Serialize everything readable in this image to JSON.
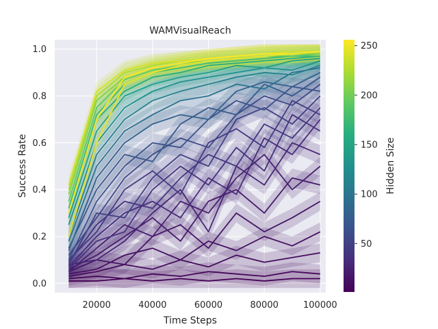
{
  "chart_data": {
    "type": "line",
    "title": "WAMVisualReach",
    "xlabel": "Time Steps",
    "ylabel": "Success Rate",
    "xlim": [
      5000,
      102000
    ],
    "ylim": [
      -0.04,
      1.04
    ],
    "x": [
      10000,
      20000,
      30000,
      40000,
      50000,
      60000,
      70000,
      80000,
      90000,
      100000
    ],
    "x_ticks": [
      20000,
      40000,
      60000,
      80000,
      100000
    ],
    "y_ticks": [
      0.0,
      0.2,
      0.4,
      0.6,
      0.8,
      1.0
    ],
    "x_tick_labels": [
      "20000",
      "40000",
      "60000",
      "80000",
      "100000"
    ],
    "y_tick_labels": [
      "0.0",
      "0.2",
      "0.4",
      "0.6",
      "0.8",
      "1.0"
    ],
    "grid": true,
    "background": "#eaeaf2",
    "colormap": "viridis",
    "colorbar": {
      "label": "Hidden Size",
      "range": [
        1,
        256
      ],
      "ticks": [
        50,
        100,
        150,
        200,
        250
      ],
      "tick_labels": [
        "50",
        "100",
        "150",
        "200",
        "250"
      ]
    },
    "series": [
      {
        "hidden_size": 2,
        "values": [
          0.01,
          0.01,
          0.02,
          0.01,
          0.02,
          0.01,
          0.02,
          0.01,
          0.02,
          0.02
        ]
      },
      {
        "hidden_size": 5,
        "values": [
          0.02,
          0.03,
          0.02,
          0.04,
          0.03,
          0.05,
          0.04,
          0.03,
          0.05,
          0.04
        ]
      },
      {
        "hidden_size": 8,
        "values": [
          0.03,
          0.05,
          0.08,
          0.06,
          0.1,
          0.07,
          0.12,
          0.09,
          0.11,
          0.13
        ]
      },
      {
        "hidden_size": 12,
        "values": [
          0.04,
          0.06,
          0.12,
          0.15,
          0.1,
          0.18,
          0.14,
          0.2,
          0.16,
          0.22
        ]
      },
      {
        "hidden_size": 16,
        "values": [
          0.05,
          0.1,
          0.08,
          0.2,
          0.25,
          0.15,
          0.3,
          0.22,
          0.28,
          0.35
        ]
      },
      {
        "hidden_size": 20,
        "values": [
          0.06,
          0.12,
          0.2,
          0.28,
          0.18,
          0.35,
          0.4,
          0.3,
          0.45,
          0.42
        ]
      },
      {
        "hidden_size": 24,
        "values": [
          0.05,
          0.15,
          0.25,
          0.2,
          0.35,
          0.3,
          0.45,
          0.55,
          0.4,
          0.5
        ]
      },
      {
        "hidden_size": 28,
        "values": [
          0.08,
          0.1,
          0.18,
          0.3,
          0.4,
          0.22,
          0.5,
          0.42,
          0.6,
          0.55
        ]
      },
      {
        "hidden_size": 32,
        "values": [
          0.07,
          0.2,
          0.3,
          0.35,
          0.28,
          0.45,
          0.38,
          0.62,
          0.55,
          0.7
        ]
      },
      {
        "hidden_size": 36,
        "values": [
          0.06,
          0.18,
          0.22,
          0.4,
          0.5,
          0.42,
          0.58,
          0.48,
          0.72,
          0.65
        ]
      },
      {
        "hidden_size": 40,
        "values": [
          0.09,
          0.25,
          0.35,
          0.32,
          0.45,
          0.55,
          0.5,
          0.68,
          0.62,
          0.75
        ]
      },
      {
        "hidden_size": 44,
        "values": [
          0.1,
          0.22,
          0.4,
          0.48,
          0.38,
          0.6,
          0.66,
          0.58,
          0.78,
          0.72
        ]
      },
      {
        "hidden_size": 48,
        "values": [
          0.08,
          0.3,
          0.28,
          0.45,
          0.55,
          0.5,
          0.7,
          0.75,
          0.68,
          0.8
        ]
      },
      {
        "hidden_size": 56,
        "values": [
          0.12,
          0.28,
          0.45,
          0.55,
          0.62,
          0.58,
          0.72,
          0.8,
          0.76,
          0.85
        ]
      },
      {
        "hidden_size": 64,
        "values": [
          0.1,
          0.35,
          0.5,
          0.6,
          0.58,
          0.7,
          0.78,
          0.74,
          0.84,
          0.82
        ]
      },
      {
        "hidden_size": 72,
        "values": [
          0.15,
          0.4,
          0.55,
          0.52,
          0.68,
          0.75,
          0.72,
          0.85,
          0.8,
          0.88
        ]
      },
      {
        "hidden_size": 80,
        "values": [
          0.14,
          0.45,
          0.6,
          0.68,
          0.72,
          0.7,
          0.82,
          0.86,
          0.84,
          0.9
        ]
      },
      {
        "hidden_size": 96,
        "values": [
          0.18,
          0.5,
          0.65,
          0.72,
          0.78,
          0.8,
          0.85,
          0.83,
          0.9,
          0.92
        ]
      },
      {
        "hidden_size": 112,
        "values": [
          0.2,
          0.55,
          0.7,
          0.78,
          0.82,
          0.85,
          0.88,
          0.9,
          0.89,
          0.93
        ]
      },
      {
        "hidden_size": 128,
        "values": [
          0.25,
          0.6,
          0.75,
          0.82,
          0.86,
          0.88,
          0.9,
          0.92,
          0.91,
          0.95
        ]
      },
      {
        "hidden_size": 144,
        "values": [
          0.28,
          0.65,
          0.8,
          0.85,
          0.88,
          0.9,
          0.93,
          0.92,
          0.95,
          0.96
        ]
      },
      {
        "hidden_size": 160,
        "values": [
          0.3,
          0.7,
          0.82,
          0.88,
          0.9,
          0.93,
          0.94,
          0.95,
          0.96,
          0.97
        ]
      },
      {
        "hidden_size": 176,
        "values": [
          0.32,
          0.72,
          0.85,
          0.9,
          0.92,
          0.94,
          0.95,
          0.96,
          0.97,
          0.97
        ]
      },
      {
        "hidden_size": 192,
        "values": [
          0.35,
          0.75,
          0.87,
          0.91,
          0.93,
          0.95,
          0.96,
          0.97,
          0.97,
          0.98
        ]
      },
      {
        "hidden_size": 208,
        "values": [
          0.38,
          0.78,
          0.88,
          0.92,
          0.94,
          0.95,
          0.96,
          0.97,
          0.98,
          0.98
        ]
      },
      {
        "hidden_size": 224,
        "values": [
          0.4,
          0.8,
          0.9,
          0.93,
          0.95,
          0.96,
          0.97,
          0.98,
          0.98,
          0.99
        ]
      },
      {
        "hidden_size": 240,
        "values": [
          0.42,
          0.82,
          0.91,
          0.94,
          0.95,
          0.96,
          0.97,
          0.98,
          0.99,
          0.99
        ]
      },
      {
        "hidden_size": 248,
        "values": [
          0.2,
          0.6,
          0.85,
          0.9,
          0.93,
          0.95,
          0.96,
          0.97,
          0.98,
          0.99
        ]
      },
      {
        "hidden_size": 256,
        "values": [
          0.3,
          0.7,
          0.88,
          0.92,
          0.94,
          0.96,
          0.97,
          0.98,
          0.98,
          0.99
        ]
      }
    ]
  }
}
